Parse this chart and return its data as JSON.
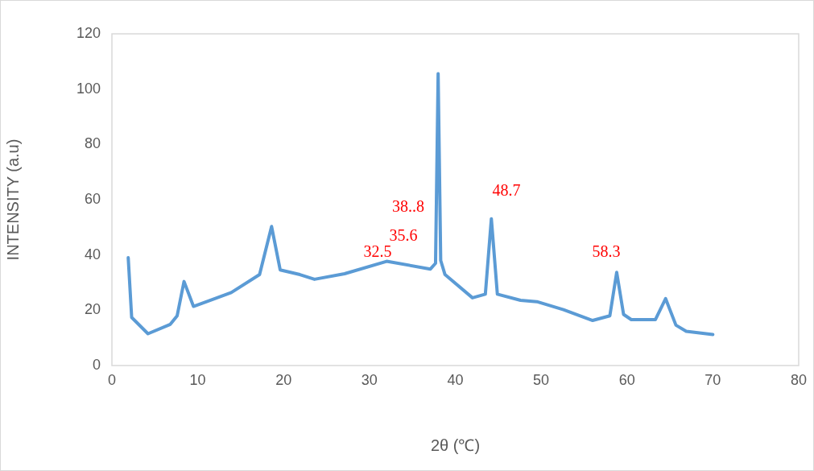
{
  "chart_data": {
    "type": "line",
    "xlabel": "2θ (℃)",
    "ylabel": "INTENSITY (a.u)",
    "xlim": [
      0,
      80
    ],
    "xticks": [
      0,
      10,
      20,
      30,
      40,
      50,
      60,
      70,
      80
    ],
    "ylim": [
      0,
      120
    ],
    "yticks": [
      0,
      20,
      40,
      60,
      80,
      100,
      120
    ],
    "grid": false,
    "legend": false,
    "marker": "none",
    "line_style": "solid",
    "series": [
      {
        "color": "#5b9bd5",
        "x": [
          1.9,
          2.3,
          4.2,
          6.8,
          7.6,
          8.4,
          9.5,
          13.9,
          17.2,
          18.6,
          19.6,
          21.9,
          23.6,
          27.1,
          32.0,
          37.1,
          37.7,
          38.0,
          38.3,
          38.8,
          42.0,
          43.5,
          44.2,
          44.9,
          47.6,
          49.5,
          52.6,
          56.0,
          58.0,
          58.8,
          59.6,
          60.5,
          63.3,
          64.5,
          65.7,
          66.9,
          70.0
        ],
        "values": [
          39,
          17.4,
          11.5,
          14.9,
          18,
          30.4,
          21.4,
          26.4,
          32.9,
          50.3,
          34.6,
          32.9,
          31.2,
          33.2,
          37.7,
          34.9,
          37,
          105.6,
          38,
          32.9,
          24.5,
          25.8,
          53.1,
          25.8,
          23.6,
          23.1,
          20.2,
          16.3,
          18,
          33.7,
          18.5,
          16.6,
          16.6,
          24.2,
          14.6,
          12.4,
          11.2
        ]
      }
    ],
    "annotations": [
      "32.5",
      "35.6",
      "38..8",
      "48.7",
      "58.3"
    ]
  }
}
